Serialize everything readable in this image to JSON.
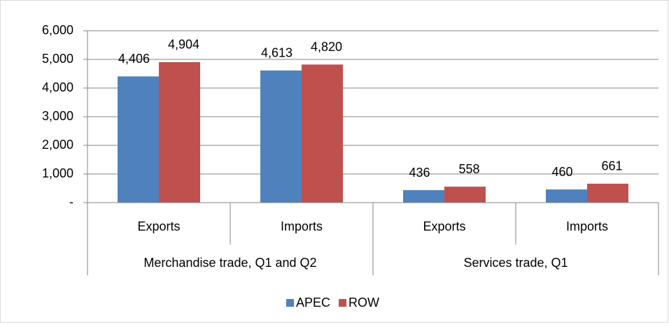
{
  "chart_data": {
    "type": "bar",
    "groups": [
      {
        "name": "Merchandise trade, Q1 and Q2",
        "categories": [
          "Exports",
          "Imports"
        ]
      },
      {
        "name": "Services trade, Q1",
        "categories": [
          "Exports",
          "Imports"
        ]
      }
    ],
    "series": [
      {
        "name": "APEC",
        "color": "#4f81bd",
        "values": [
          4406,
          4613,
          436,
          460
        ],
        "value_labels": [
          "4,406",
          "4,613",
          "436",
          "460"
        ]
      },
      {
        "name": "ROW",
        "color": "#c0504d",
        "values": [
          4904,
          4820,
          558,
          661
        ],
        "value_labels": [
          "4,904",
          "4,820",
          "558",
          "661"
        ]
      }
    ],
    "ylim": [
      0,
      6000
    ],
    "yticks": [
      {
        "value": 0,
        "label": "-"
      },
      {
        "value": 1000,
        "label": "1,000"
      },
      {
        "value": 2000,
        "label": "2,000"
      },
      {
        "value": 3000,
        "label": "3,000"
      },
      {
        "value": 4000,
        "label": "4,000"
      },
      {
        "value": 5000,
        "label": "5,000"
      },
      {
        "value": 6000,
        "label": "6,000"
      }
    ],
    "grid": true,
    "legend": "bottom"
  }
}
